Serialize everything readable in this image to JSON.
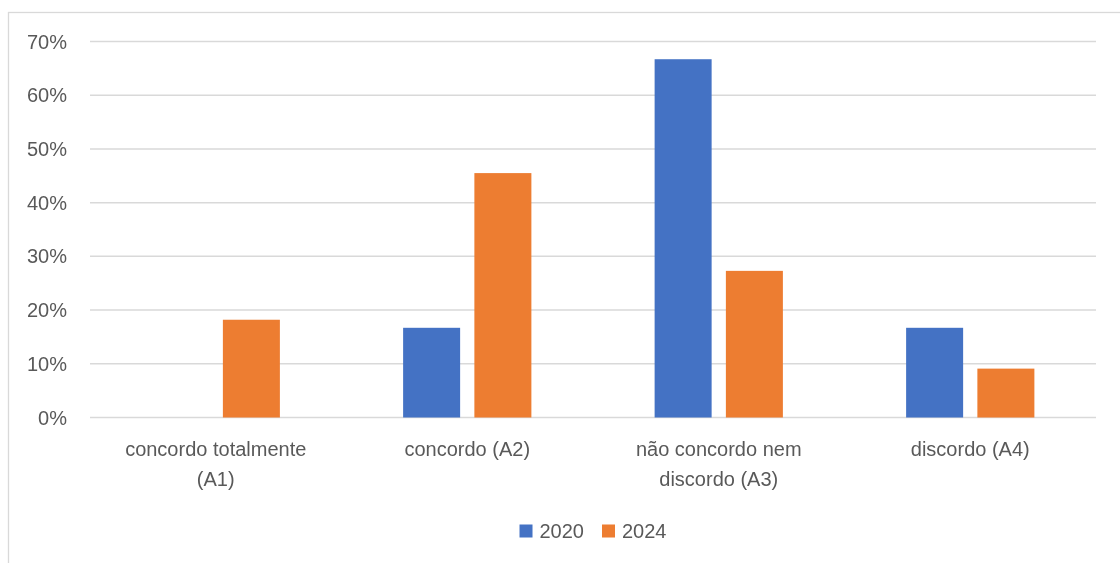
{
  "chart_data": {
    "type": "bar",
    "categories": [
      "concordo totalmente (A1)",
      "concordo (A2)",
      "não concordo nem discordo (A3)",
      "discordo (A4)"
    ],
    "series": [
      {
        "name": "2020",
        "color": "#4472c4",
        "values": [
          null,
          16.7,
          66.7,
          16.7
        ]
      },
      {
        "name": "2024",
        "color": "#ed7d31",
        "values": [
          18.2,
          45.5,
          27.3,
          9.1
        ]
      }
    ],
    "ylim": [
      0,
      70
    ],
    "yticks": [
      {
        "value": 0,
        "label": "0%"
      },
      {
        "value": 10,
        "label": "10%"
      },
      {
        "value": 20,
        "label": "20%"
      },
      {
        "value": 30,
        "label": "30%"
      },
      {
        "value": 40,
        "label": "40%"
      },
      {
        "value": 50,
        "label": "50%"
      },
      {
        "value": 60,
        "label": "60%"
      },
      {
        "value": 70,
        "label": "70%"
      }
    ],
    "grid": true,
    "legend": "bottom"
  }
}
